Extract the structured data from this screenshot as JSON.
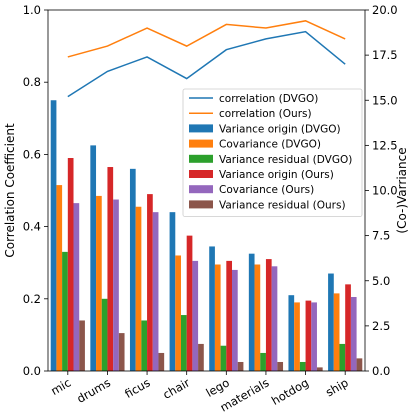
{
  "chart_data": {
    "type": "bar",
    "categories": [
      "mic",
      "drums",
      "ficus",
      "chair",
      "lego",
      "materials",
      "hotdog",
      "ship"
    ],
    "ylabel": "Correlation Coefficient",
    "ylabel_right": "(Co-)Varriance",
    "ylim": [
      0,
      1.0
    ],
    "y2lim": [
      0,
      20.0
    ],
    "yticks": [
      "0.0",
      "0.2",
      "0.4",
      "0.6",
      "0.8",
      "1.0"
    ],
    "y2ticks": [
      "0.0",
      "2.5",
      "5.0",
      "7.5",
      "10.0",
      "12.5",
      "15.0",
      "17.5",
      "20.0"
    ],
    "legend_position": "right",
    "lines": [
      {
        "name": "correlation (DVGO)",
        "color": "#1f77b4",
        "values": [
          0.76,
          0.83,
          0.87,
          0.81,
          0.89,
          0.92,
          0.94,
          0.85
        ]
      },
      {
        "name": "correlation (Ours)",
        "color": "#ff7f0e",
        "values": [
          0.87,
          0.9,
          0.95,
          0.9,
          0.96,
          0.95,
          0.97,
          0.92
        ]
      }
    ],
    "series": [
      {
        "name": "Variance origin (DVGO)",
        "color": "#1f77b4",
        "axis": "right",
        "values": [
          15.0,
          12.5,
          11.2,
          8.8,
          6.9,
          6.5,
          4.2,
          5.4
        ]
      },
      {
        "name": "Covariance (DVGO)",
        "color": "#ff7f0e",
        "axis": "right",
        "values": [
          10.3,
          9.7,
          9.1,
          6.4,
          5.9,
          5.9,
          3.8,
          4.3
        ]
      },
      {
        "name": "Variance residual (DVGO)",
        "color": "#2ca02c",
        "axis": "right",
        "values": [
          6.6,
          4.0,
          2.8,
          3.1,
          1.4,
          1.0,
          0.5,
          1.5
        ]
      },
      {
        "name": "Variance origin (Ours)",
        "color": "#d62728",
        "axis": "right",
        "values": [
          11.8,
          11.3,
          9.8,
          7.5,
          6.1,
          6.2,
          3.9,
          4.8
        ]
      },
      {
        "name": "Covariance (Ours)",
        "color": "#9467bd",
        "axis": "right",
        "values": [
          9.3,
          9.5,
          8.8,
          6.1,
          5.6,
          5.8,
          3.8,
          4.1
        ]
      },
      {
        "name": "Variance residual (Ours)",
        "color": "#8c564b",
        "axis": "right",
        "values": [
          2.8,
          2.1,
          1.0,
          1.5,
          0.5,
          0.5,
          0.2,
          0.7
        ]
      }
    ]
  }
}
